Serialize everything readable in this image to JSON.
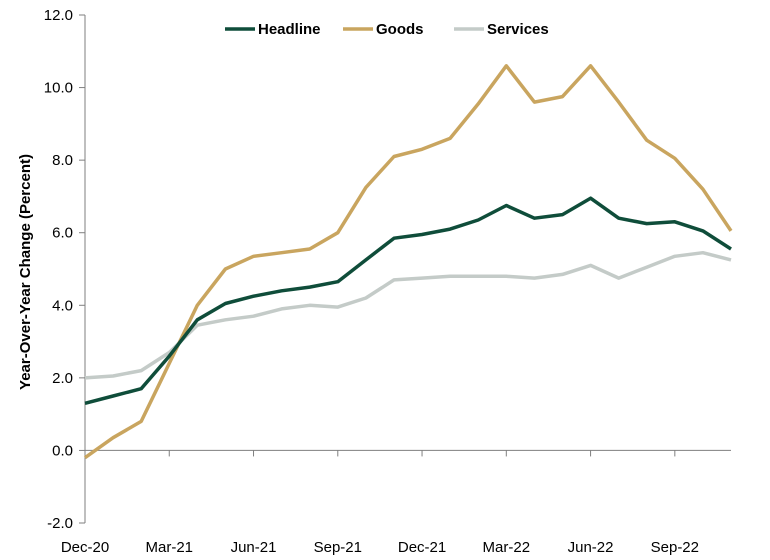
{
  "chart_data": {
    "type": "line",
    "title": "",
    "xlabel": "",
    "ylabel": "Year-Over-Year Change (Percent)",
    "ylim": [
      -2.0,
      12.0
    ],
    "yticks": [
      "-2.0",
      "0.0",
      "2.0",
      "4.0",
      "6.0",
      "8.0",
      "10.0",
      "12.0"
    ],
    "categories": [
      "Dec-20",
      "Jan-21",
      "Feb-21",
      "Mar-21",
      "Apr-21",
      "May-21",
      "Jun-21",
      "Jul-21",
      "Aug-21",
      "Sep-21",
      "Oct-21",
      "Nov-21",
      "Dec-21",
      "Jan-22",
      "Feb-22",
      "Mar-22",
      "Apr-22",
      "May-22",
      "Jun-22",
      "Jul-22",
      "Aug-22",
      "Sep-22",
      "Oct-22",
      "Nov-22"
    ],
    "xtick_labels": [
      "Dec-20",
      "Mar-21",
      "Jun-21",
      "Sep-21",
      "Dec-21",
      "Mar-22",
      "Jun-22",
      "Sep-22"
    ],
    "legend_position": "top",
    "grid": false,
    "series": [
      {
        "name": "Headline",
        "color": "#0f4d3a",
        "values": [
          1.3,
          1.5,
          1.7,
          2.6,
          3.6,
          4.05,
          4.25,
          4.4,
          4.5,
          4.65,
          5.25,
          5.85,
          5.95,
          6.1,
          6.35,
          6.75,
          6.4,
          6.5,
          6.95,
          6.4,
          6.25,
          6.3,
          6.05,
          5.55
        ]
      },
      {
        "name": "Goods",
        "color": "#c9a55f",
        "values": [
          -0.2,
          0.35,
          0.8,
          2.4,
          4.0,
          5.0,
          5.35,
          5.45,
          5.55,
          6.0,
          7.25,
          8.1,
          8.3,
          8.6,
          9.55,
          10.6,
          9.6,
          9.75,
          10.6,
          9.6,
          8.55,
          8.05,
          7.2,
          6.05
        ]
      },
      {
        "name": "Services",
        "color": "#c4cbc8",
        "values": [
          2.0,
          2.05,
          2.2,
          2.7,
          3.45,
          3.6,
          3.7,
          3.9,
          4.0,
          3.95,
          4.2,
          4.7,
          4.75,
          4.8,
          4.8,
          4.8,
          4.75,
          4.85,
          5.1,
          4.75,
          5.05,
          5.35,
          5.45,
          5.25
        ]
      }
    ]
  }
}
